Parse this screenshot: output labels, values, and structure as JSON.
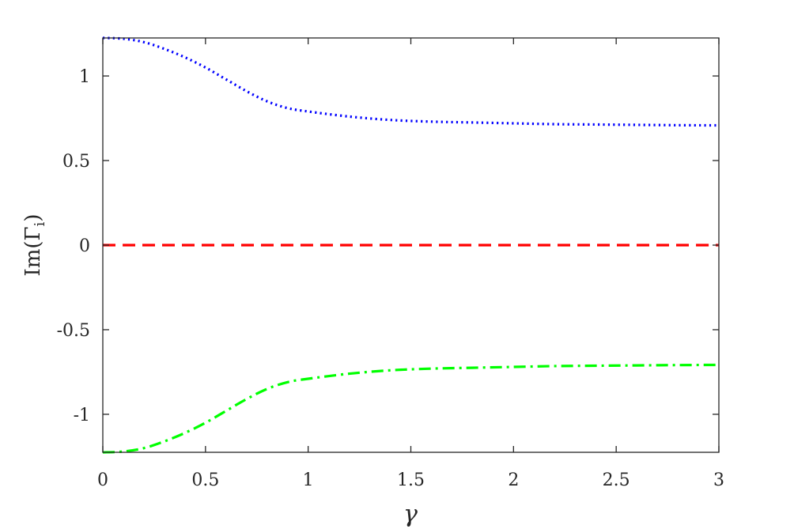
{
  "chart_data": {
    "type": "line",
    "title": "",
    "xlabel": "γ",
    "ylabel": "Im(Γ",
    "ylabel_subscript": "i",
    "ylabel_close": ")",
    "xlim": [
      0,
      3
    ],
    "ylim": [
      -1.2247,
      1.2247
    ],
    "grid": false,
    "xticks": [
      {
        "value": 0,
        "label": "0"
      },
      {
        "value": 0.5,
        "label": "0.5"
      },
      {
        "value": 1,
        "label": "1"
      },
      {
        "value": 1.5,
        "label": "1.5"
      },
      {
        "value": 2,
        "label": "2"
      },
      {
        "value": 2.5,
        "label": "2.5"
      },
      {
        "value": 3,
        "label": "3"
      }
    ],
    "yticks": [
      {
        "value": 1,
        "label": "1"
      },
      {
        "value": 0.5,
        "label": "0.5"
      },
      {
        "value": 0,
        "label": "0"
      },
      {
        "value": -0.5,
        "label": "-0.5"
      },
      {
        "value": -1,
        "label": "-1"
      }
    ],
    "x": [
      0,
      0.1,
      0.2,
      0.3,
      0.4,
      0.5,
      0.6,
      0.7,
      0.8,
      0.9,
      1.0,
      1.2,
      1.4,
      1.6,
      1.8,
      2.0,
      2.2,
      2.4,
      2.6,
      2.8,
      3.0
    ],
    "series": [
      {
        "color": "#0000ff",
        "style": "dotted",
        "values": [
          1.225,
          1.22,
          1.2,
          1.16,
          1.11,
          1.05,
          0.98,
          0.91,
          0.85,
          0.81,
          0.79,
          0.76,
          0.74,
          0.73,
          0.725,
          0.72,
          0.715,
          0.713,
          0.711,
          0.709,
          0.708
        ]
      },
      {
        "color": "#ff0000",
        "style": "dashed",
        "values": [
          0,
          0,
          0,
          0,
          0,
          0,
          0,
          0,
          0,
          0,
          0,
          0,
          0,
          0,
          0,
          0,
          0,
          0,
          0,
          0,
          0
        ]
      },
      {
        "color": "#00ff00",
        "style": "dashdot",
        "values": [
          -1.225,
          -1.22,
          -1.2,
          -1.16,
          -1.11,
          -1.05,
          -0.98,
          -0.91,
          -0.85,
          -0.81,
          -0.79,
          -0.76,
          -0.74,
          -0.73,
          -0.725,
          -0.72,
          -0.715,
          -0.713,
          -0.711,
          -0.709,
          -0.708
        ]
      }
    ]
  }
}
